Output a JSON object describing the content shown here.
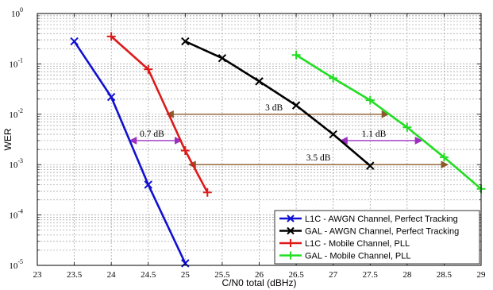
{
  "chart_data": {
    "type": "line",
    "xlabel": "C/N0 total (dBHz)",
    "ylabel": "WER",
    "xlim": [
      23,
      29
    ],
    "ylim": [
      1e-05,
      1
    ],
    "yscale": "log",
    "grid": true,
    "legend_position": "bottom-right",
    "x_ticks": [
      "23",
      "23.5",
      "24",
      "24.5",
      "25",
      "25.5",
      "26",
      "26.5",
      "27",
      "27.5",
      "28",
      "28.5",
      "29"
    ],
    "y_ticks": [
      {
        "value": 1,
        "label": "10",
        "exp": "0"
      },
      {
        "value": 0.1,
        "label": "10",
        "exp": "-1"
      },
      {
        "value": 0.01,
        "label": "10",
        "exp": "-2"
      },
      {
        "value": 0.001,
        "label": "10",
        "exp": "-3"
      },
      {
        "value": 0.0001,
        "label": "10",
        "exp": "-4"
      },
      {
        "value": 1e-05,
        "label": "10",
        "exp": "-5"
      }
    ],
    "series": [
      {
        "name": "L1C - AWGN Channel, Perfect Tracking",
        "color": "#1010d0",
        "marker": "x",
        "x": [
          23.5,
          24,
          24.5,
          25
        ],
        "y": [
          0.28,
          0.022,
          0.0004,
          1.1e-05
        ]
      },
      {
        "name": "GAL - AWGN Channel, Perfect Tracking",
        "color": "#000000",
        "marker": "x",
        "x": [
          25,
          25.5,
          26,
          26.5,
          27,
          27.5
        ],
        "y": [
          0.28,
          0.13,
          0.045,
          0.015,
          0.004,
          0.00095
        ]
      },
      {
        "name": "L1C - Mobile Channel, PLL",
        "color": "#dd1a1a",
        "marker": "+",
        "x": [
          24,
          24.5,
          25,
          25.3
        ],
        "y": [
          0.35,
          0.078,
          0.0019,
          0.00028
        ]
      },
      {
        "name": "GAL - Mobile Channel, PLL",
        "color": "#22dd22",
        "marker": "+",
        "x": [
          26.5,
          27,
          27.5,
          28,
          28.5,
          29
        ],
        "y": [
          0.15,
          0.052,
          0.019,
          0.0055,
          0.0014,
          0.00033
        ]
      }
    ],
    "annotations": [
      {
        "label": "3 dB",
        "x1": 24.75,
        "x2": 27.75,
        "y": 0.01,
        "color": "#8b5a2b",
        "label_x": 26.2
      },
      {
        "label": "0.7 dB",
        "x1": 24.25,
        "x2": 24.95,
        "y": 0.003,
        "color": "#9b30c0",
        "label_x": 24.55
      },
      {
        "label": "1.1 dB",
        "x1": 27.1,
        "x2": 28.2,
        "y": 0.003,
        "color": "#9b30c0",
        "label_x": 27.55
      },
      {
        "label": "3.5 dB",
        "x1": 25.05,
        "x2": 28.55,
        "y": 0.001,
        "color": "#8b5a2b",
        "label_x": 26.8
      }
    ]
  }
}
